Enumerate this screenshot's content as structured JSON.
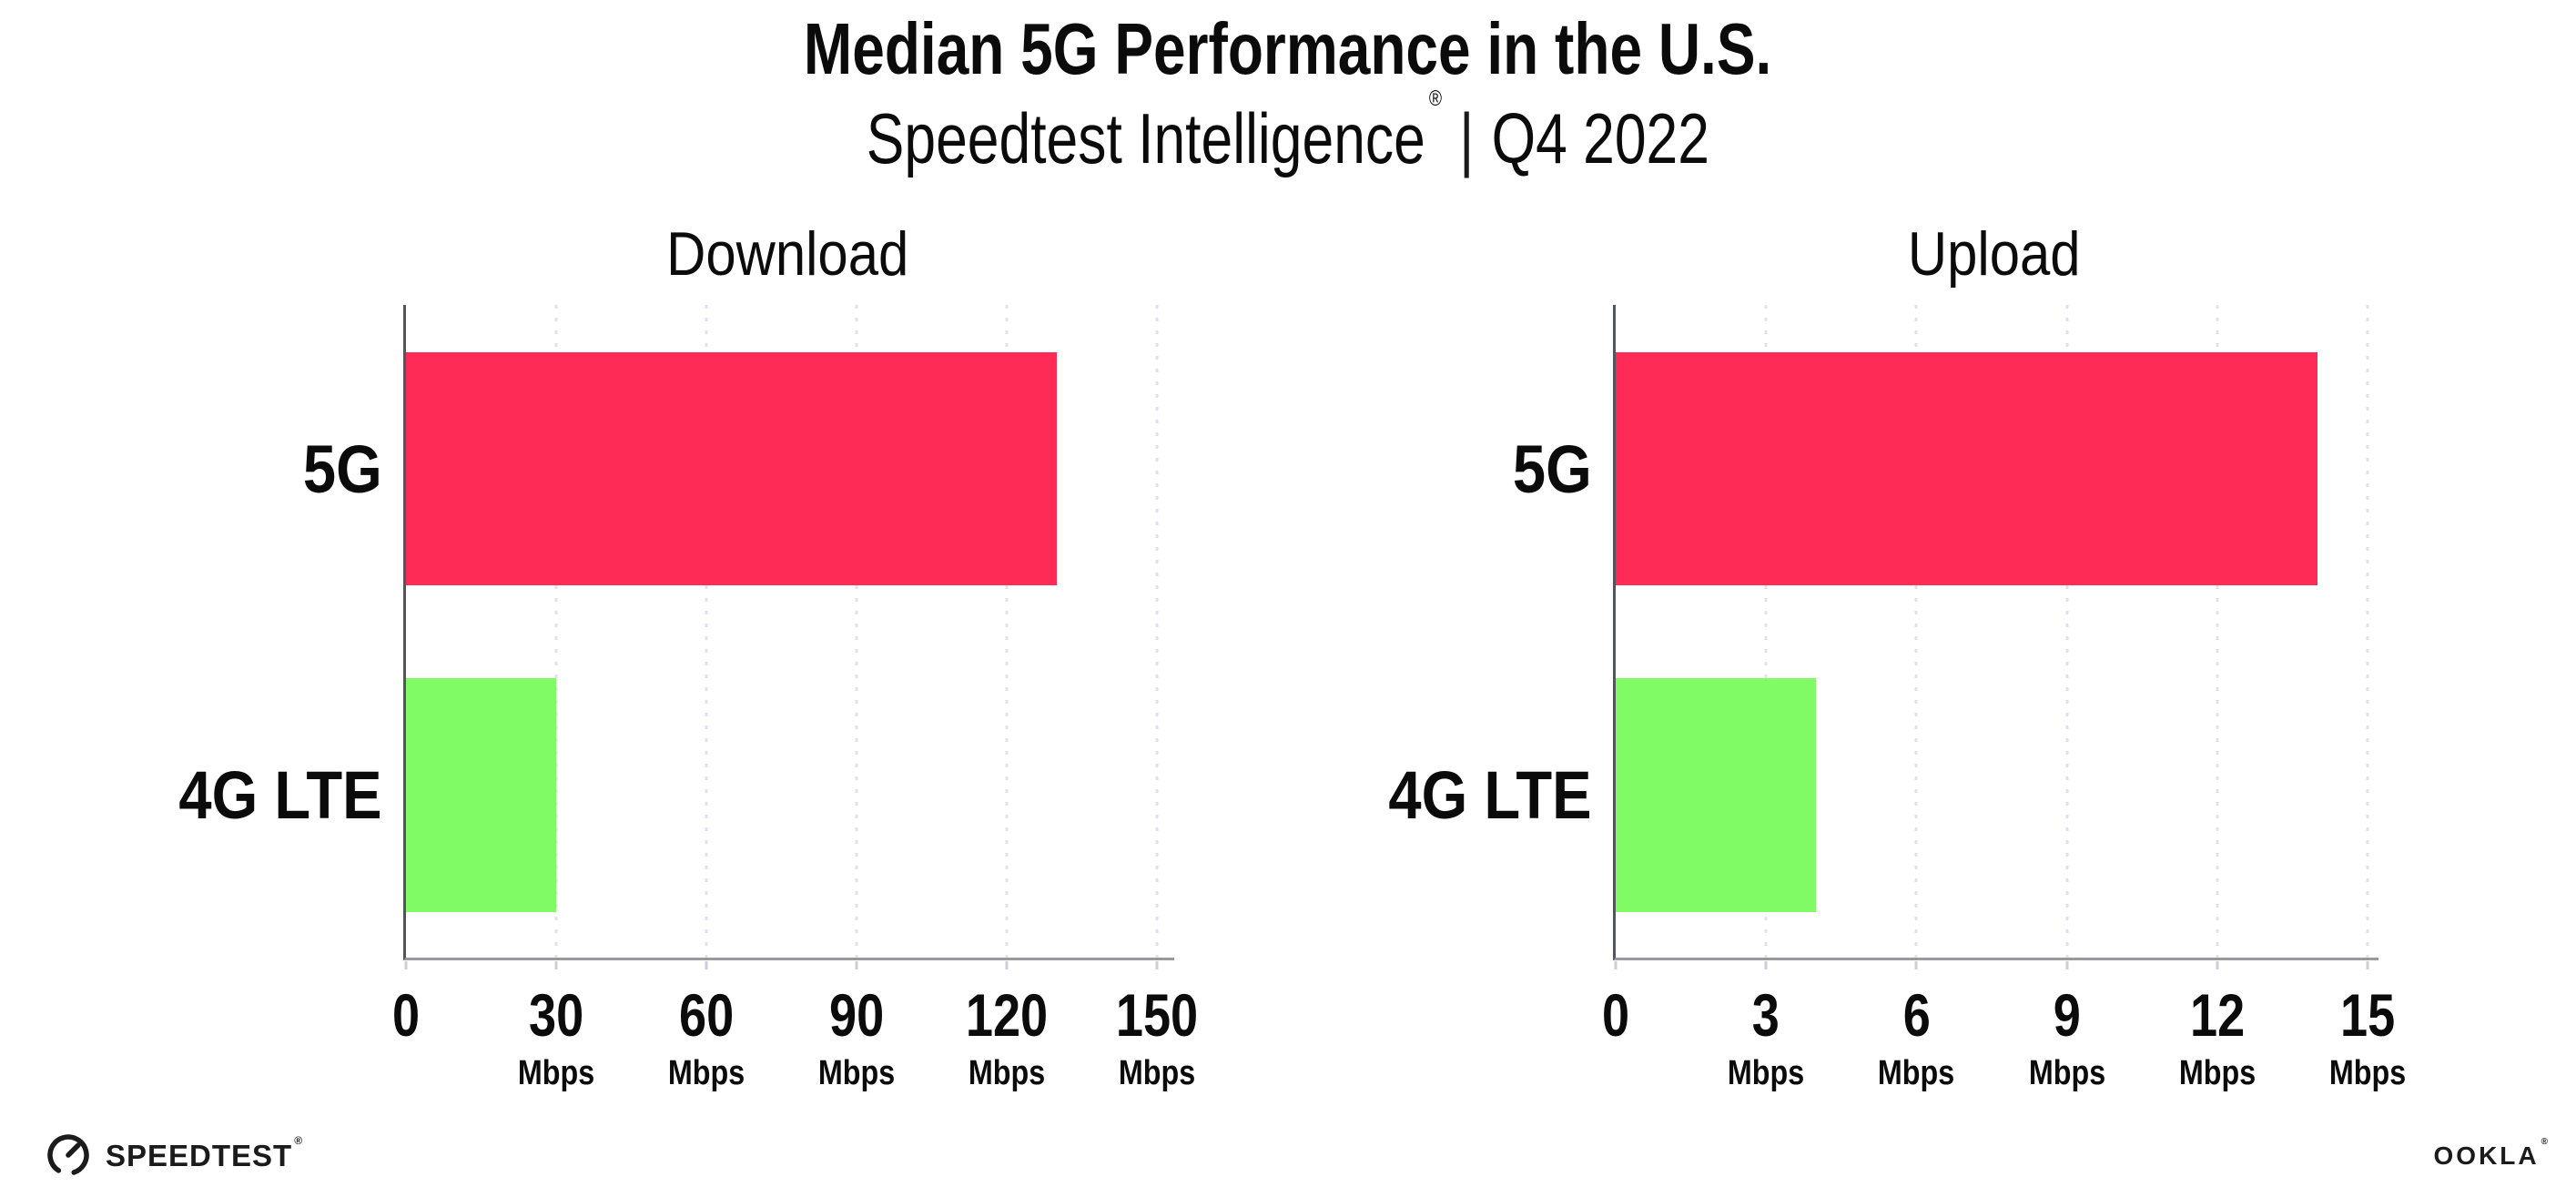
{
  "header": {
    "title": "Median 5G Performance in the U.S.",
    "subtitle": {
      "brand": "Speedtest Intelligence",
      "registered_mark": "®",
      "separator": "|",
      "period": "Q4 2022"
    }
  },
  "chart_data": [
    {
      "type": "bar",
      "orientation": "horizontal",
      "title": "Download",
      "categories": [
        "5G",
        "4G LTE"
      ],
      "values": [
        130,
        30
      ],
      "value_unit": "Mbps",
      "series_colors": {
        "5G": "#fd2b56",
        "4G LTE": "#80fb66"
      },
      "xticks": [
        0,
        30,
        60,
        90,
        120,
        150
      ],
      "xtick_unit_label": "Mbps",
      "xlim": [
        0,
        153.5
      ],
      "grid": "vertical-dotted",
      "legend": "none"
    },
    {
      "type": "bar",
      "orientation": "horizontal",
      "title": "Upload",
      "categories": [
        "5G",
        "4G LTE"
      ],
      "values": [
        14,
        4
      ],
      "value_unit": "Mbps",
      "series_colors": {
        "5G": "#fd2b56",
        "4G LTE": "#80fb66"
      },
      "xticks": [
        0,
        3,
        6,
        9,
        12,
        15
      ],
      "xtick_unit_label": "Mbps",
      "xlim": [
        0,
        15.22
      ],
      "grid": "vertical-dotted",
      "legend": "none"
    }
  ],
  "footer": {
    "speedtest_logo_text": "SPEEDTEST",
    "speedtest_registered_mark": "®",
    "ookla_logo_text": "OOKLA",
    "ookla_registered_mark": "®"
  },
  "colors": {
    "bar_5g": "#fd2b56",
    "bar_4g_lte": "#80fb66",
    "axis_spine": "#54545c",
    "axis_baseline": "#98989e",
    "gridline": "#e1e1eb",
    "text": "#0b0b0b",
    "background": "#ffffff"
  }
}
